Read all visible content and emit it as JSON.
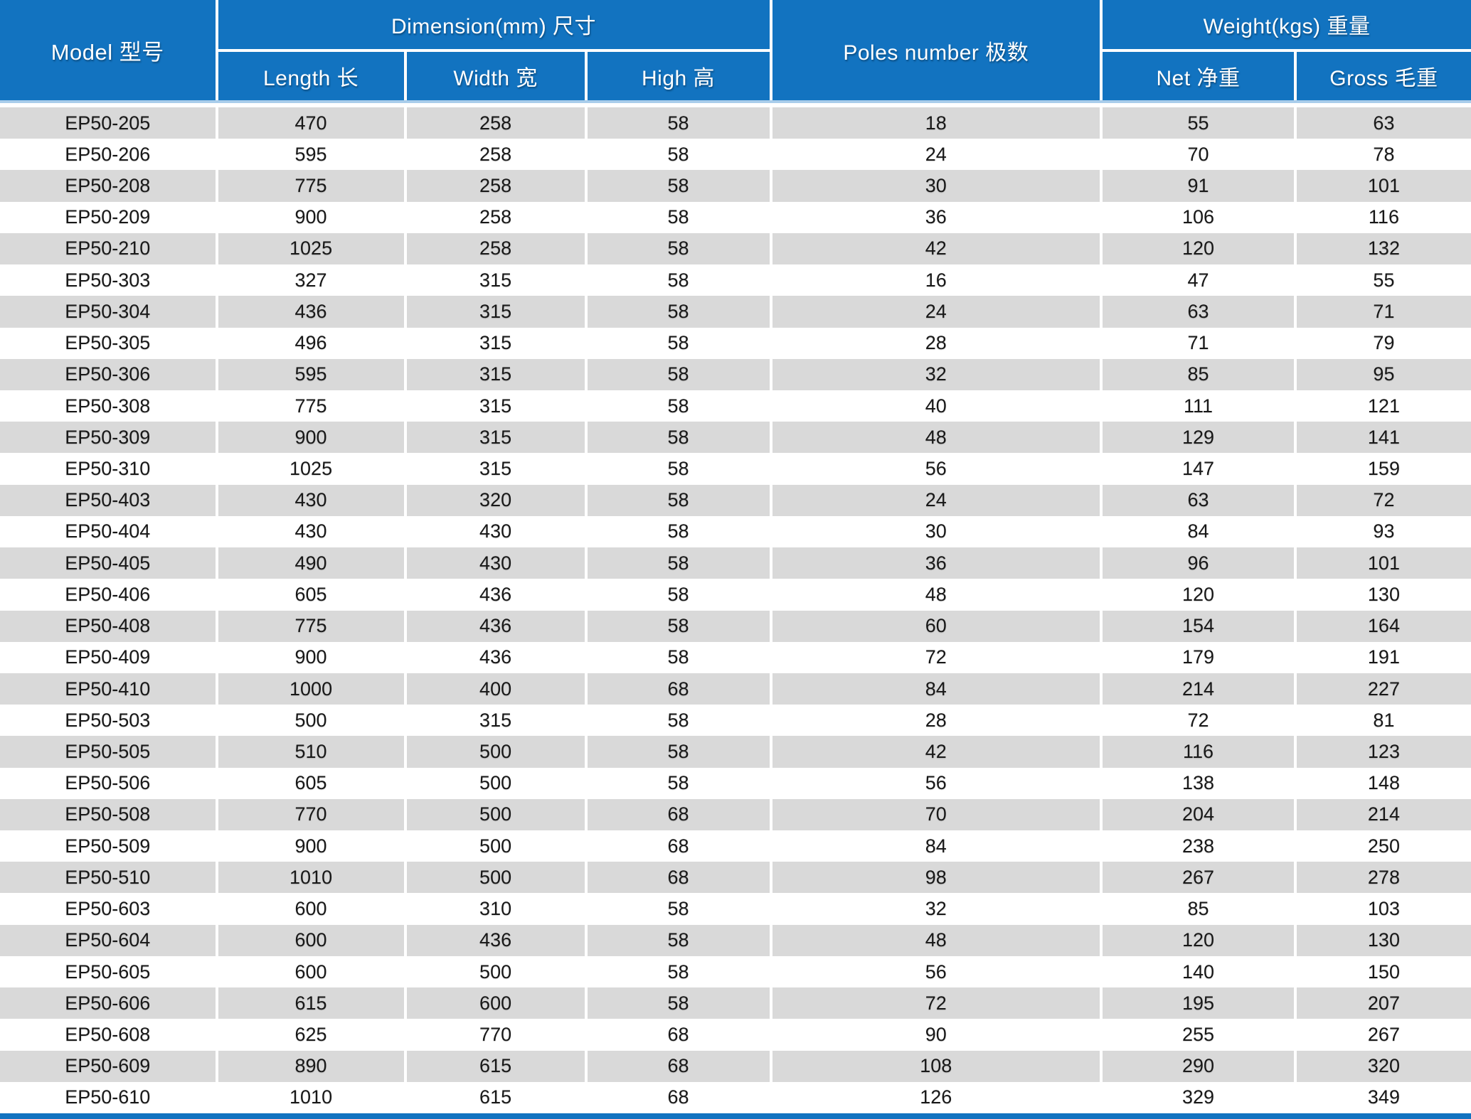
{
  "table": {
    "header": {
      "model": "Model 型号",
      "dimension_group": "Dimension(mm) 尺寸",
      "length": "Length 长",
      "width": "Width 宽",
      "high": "High 高",
      "poles": "Poles number 极数",
      "weight_group": "Weight(kgs) 重量",
      "net": "Net 净重",
      "gross": "Gross 毛重"
    },
    "rows": [
      [
        "EP50-205",
        "470",
        "258",
        "58",
        "18",
        "55",
        "63"
      ],
      [
        "EP50-206",
        "595",
        "258",
        "58",
        "24",
        "70",
        "78"
      ],
      [
        "EP50-208",
        "775",
        "258",
        "58",
        "30",
        "91",
        "101"
      ],
      [
        "EP50-209",
        "900",
        "258",
        "58",
        "36",
        "106",
        "116"
      ],
      [
        "EP50-210",
        "1025",
        "258",
        "58",
        "42",
        "120",
        "132"
      ],
      [
        "EP50-303",
        "327",
        "315",
        "58",
        "16",
        "47",
        "55"
      ],
      [
        "EP50-304",
        "436",
        "315",
        "58",
        "24",
        "63",
        "71"
      ],
      [
        "EP50-305",
        "496",
        "315",
        "58",
        "28",
        "71",
        "79"
      ],
      [
        "EP50-306",
        "595",
        "315",
        "58",
        "32",
        "85",
        "95"
      ],
      [
        "EP50-308",
        "775",
        "315",
        "58",
        "40",
        "111",
        "121"
      ],
      [
        "EP50-309",
        "900",
        "315",
        "58",
        "48",
        "129",
        "141"
      ],
      [
        "EP50-310",
        "1025",
        "315",
        "58",
        "56",
        "147",
        "159"
      ],
      [
        "EP50-403",
        "430",
        "320",
        "58",
        "24",
        "63",
        "72"
      ],
      [
        "EP50-404",
        "430",
        "430",
        "58",
        "30",
        "84",
        "93"
      ],
      [
        "EP50-405",
        "490",
        "430",
        "58",
        "36",
        "96",
        "101"
      ],
      [
        "EP50-406",
        "605",
        "436",
        "58",
        "48",
        "120",
        "130"
      ],
      [
        "EP50-408",
        "775",
        "436",
        "58",
        "60",
        "154",
        "164"
      ],
      [
        "EP50-409",
        "900",
        "436",
        "58",
        "72",
        "179",
        "191"
      ],
      [
        "EP50-410",
        "1000",
        "400",
        "68",
        "84",
        "214",
        "227"
      ],
      [
        "EP50-503",
        "500",
        "315",
        "58",
        "28",
        "72",
        "81"
      ],
      [
        "EP50-505",
        "510",
        "500",
        "58",
        "42",
        "116",
        "123"
      ],
      [
        "EP50-506",
        "605",
        "500",
        "58",
        "56",
        "138",
        "148"
      ],
      [
        "EP50-508",
        "770",
        "500",
        "68",
        "70",
        "204",
        "214"
      ],
      [
        "EP50-509",
        "900",
        "500",
        "68",
        "84",
        "238",
        "250"
      ],
      [
        "EP50-510",
        "1010",
        "500",
        "68",
        "98",
        "267",
        "278"
      ],
      [
        "EP50-603",
        "600",
        "310",
        "58",
        "32",
        "85",
        "103"
      ],
      [
        "EP50-604",
        "600",
        "436",
        "58",
        "48",
        "120",
        "130"
      ],
      [
        "EP50-605",
        "600",
        "500",
        "58",
        "56",
        "140",
        "150"
      ],
      [
        "EP50-606",
        "615",
        "600",
        "58",
        "72",
        "195",
        "207"
      ],
      [
        "EP50-608",
        "625",
        "770",
        "68",
        "90",
        "255",
        "267"
      ],
      [
        "EP50-609",
        "890",
        "615",
        "68",
        "108",
        "290",
        "320"
      ],
      [
        "EP50-610",
        "1010",
        "615",
        "68",
        "126",
        "329",
        "349"
      ]
    ]
  },
  "colors": {
    "header_blue": "#1273c0",
    "stripe_gray": "#d9d9d9",
    "header_separator_light_blue": "#a9cdeb",
    "bottom_bar_blue": "#1273c0",
    "data_text": "#181818"
  }
}
